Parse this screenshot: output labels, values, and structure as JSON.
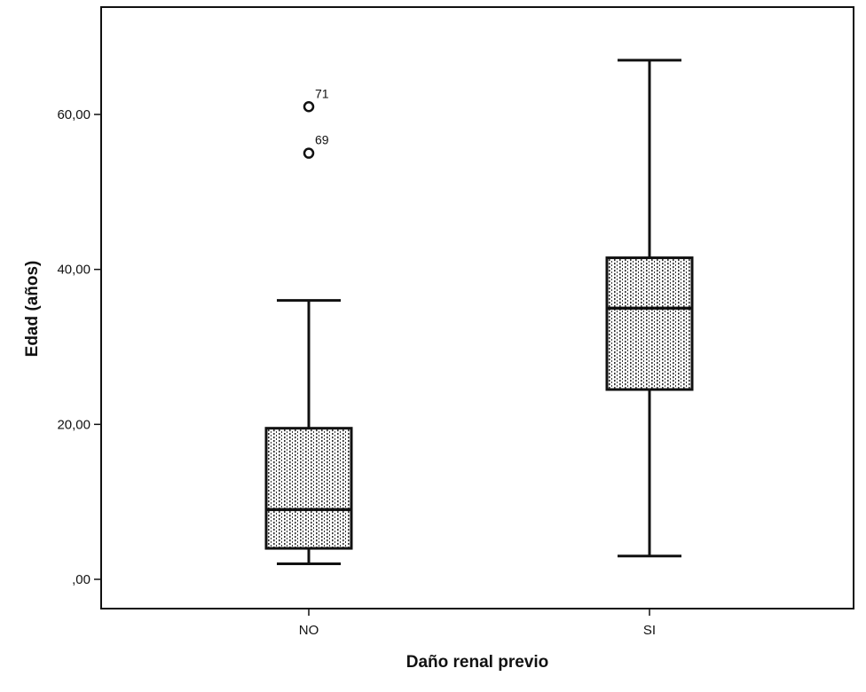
{
  "chart_data": {
    "type": "boxplot",
    "xlabel": "Daño renal previo",
    "ylabel": "Edad (años)",
    "ylim": [
      -4,
      74
    ],
    "yticks": [
      0,
      20,
      40,
      60
    ],
    "ytick_labels": [
      ",00",
      "20,00",
      "40,00",
      "60,00"
    ],
    "grid": false,
    "legend": "none",
    "groups": [
      {
        "category": "NO",
        "min": 2,
        "q1": 4,
        "median": 9,
        "q3": 19.5,
        "max": 36,
        "outliers": [
          {
            "label": "71",
            "value": 61
          },
          {
            "label": "69",
            "value": 55
          }
        ]
      },
      {
        "category": "SI",
        "min": 3,
        "q1": 24.5,
        "median": 35,
        "q3": 41.5,
        "max": 67,
        "outliers": []
      }
    ],
    "box_fill": "dotted",
    "colors": {
      "line": "#111111",
      "box_background": "#ffffff",
      "box_pattern": "#333333"
    }
  }
}
